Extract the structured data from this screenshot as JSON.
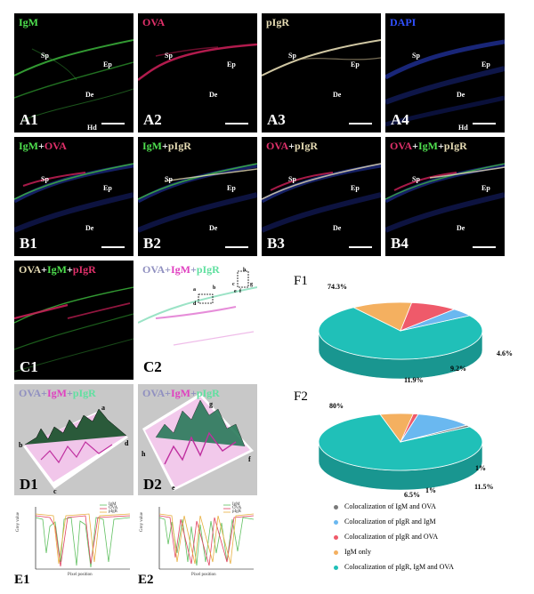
{
  "panelsA": [
    {
      "id": "A1",
      "title": "IgM",
      "color": "#4fe04f",
      "labels": {
        "sp": "Sp",
        "ep": "Ep",
        "de": "De",
        "hd": "Hd"
      }
    },
    {
      "id": "A2",
      "title": "OVA",
      "color": "#e0306a",
      "labels": {
        "sp": "Sp",
        "ep": "Ep",
        "de": "De"
      }
    },
    {
      "id": "A3",
      "title": "pIgR",
      "color": "#e6dcb4",
      "labels": {
        "sp": "Sp",
        "ep": "Ep",
        "de": "De"
      }
    },
    {
      "id": "A4",
      "title": "DAPI",
      "color": "#3050ff",
      "labels": {
        "sp": "Sp",
        "ep": "Ep",
        "de": "De",
        "hd": "Hd"
      }
    }
  ],
  "panelsB": [
    {
      "id": "B1",
      "t1": "IgM",
      "t2": "+",
      "t3": "OVA",
      "labels": {
        "sp": "Sp",
        "ep": "Ep",
        "de": "De"
      }
    },
    {
      "id": "B2",
      "t1": "IgM",
      "t2": "+",
      "t3": "pIgR",
      "labels": {
        "sp": "Sp",
        "ep": "Ep",
        "de": "De"
      }
    },
    {
      "id": "B3",
      "t1": "OVA",
      "t2": "+",
      "t3": "pIgR",
      "labels": {
        "sp": "Sp",
        "ep": "Ep",
        "de": "De"
      }
    },
    {
      "id": "B4",
      "t1": "OVA",
      "t2": "+",
      "t3": "IgM",
      "t4": "+",
      "t5": "pIgR",
      "labels": {
        "sp": "Sp",
        "ep": "Ep",
        "de": "De"
      }
    }
  ],
  "panelC1": {
    "id": "C1",
    "t1": "OVA",
    "t2": "+",
    "t3": "IgM",
    "t4": "+",
    "t5": "pIgR"
  },
  "panelC2": {
    "id": "C2",
    "t1": "OVA",
    "t2": "+",
    "t3": "IgM",
    "t4": "+",
    "t5": "pIgR",
    "marks": [
      "a",
      "b",
      "c",
      "d",
      "e",
      "f",
      "g",
      "h"
    ]
  },
  "panelD1": {
    "id": "D1",
    "t1": "OVA",
    "t2": "+",
    "t3": "IgM",
    "t4": "+",
    "t5": "pIgR",
    "marks": [
      "a",
      "b",
      "c",
      "d"
    ]
  },
  "panelD2": {
    "id": "D2",
    "t1": "OVA",
    "t2": "+",
    "t3": "IgM",
    "t4": "+",
    "t5": "pIgR",
    "marks": [
      "g",
      "h",
      "e",
      "f"
    ]
  },
  "panelE1": {
    "id": "E1",
    "xlabel": "Pixel position",
    "ylabel": "Grey value",
    "legend": [
      "IgM",
      "OVA",
      "pIgR"
    ]
  },
  "panelE2": {
    "id": "E2",
    "xlabel": "Pixel position",
    "ylabel": "Grey value",
    "legend": [
      "IgM",
      "OVA",
      "pIgR"
    ]
  },
  "colors": {
    "igm": "#4fe04f",
    "ova": "#e0306a",
    "pigr": "#e6dcb4",
    "dapi": "#3050ff"
  },
  "chart_data": [
    {
      "type": "pie",
      "id": "F1",
      "title": "F1",
      "labels": [
        "Colocalization of IgM and OVA",
        "Colocalization of pIgR and IgM",
        "Colocalization of pIgR and OVA",
        "IgM only",
        "Colocalization of pIgR, IgM and OVA"
      ],
      "values": [
        0,
        4.6,
        9.2,
        11.9,
        74.3
      ],
      "value_labels": [
        "",
        "4.6%",
        "9.2%",
        "11.9%",
        "74.3%"
      ]
    },
    {
      "type": "pie",
      "id": "F2",
      "title": "F2",
      "labels": [
        "Colocalization of IgM and OVA",
        "Colocalization of pIgR and IgM",
        "Colocalization of pIgR and OVA",
        "IgM only",
        "Colocalization of pIgR, IgM and OVA"
      ],
      "values": [
        1,
        11.5,
        1,
        6.5,
        80
      ],
      "value_labels": [
        "1%",
        "11.5%",
        "1%",
        "6.5%",
        "80%"
      ]
    }
  ],
  "legend": [
    {
      "label": "Colocalization of IgM and OVA",
      "color": "#7a7a7a"
    },
    {
      "label": "Colocalization of pIgR and IgM",
      "color": "#6ab8f0"
    },
    {
      "label": "Colocalization of pIgR and OVA",
      "color": "#ef5a6a"
    },
    {
      "label": "IgM only",
      "color": "#f4b060"
    },
    {
      "label": "Colocalization of pIgR, IgM and OVA",
      "color": "#20c0b8"
    }
  ]
}
